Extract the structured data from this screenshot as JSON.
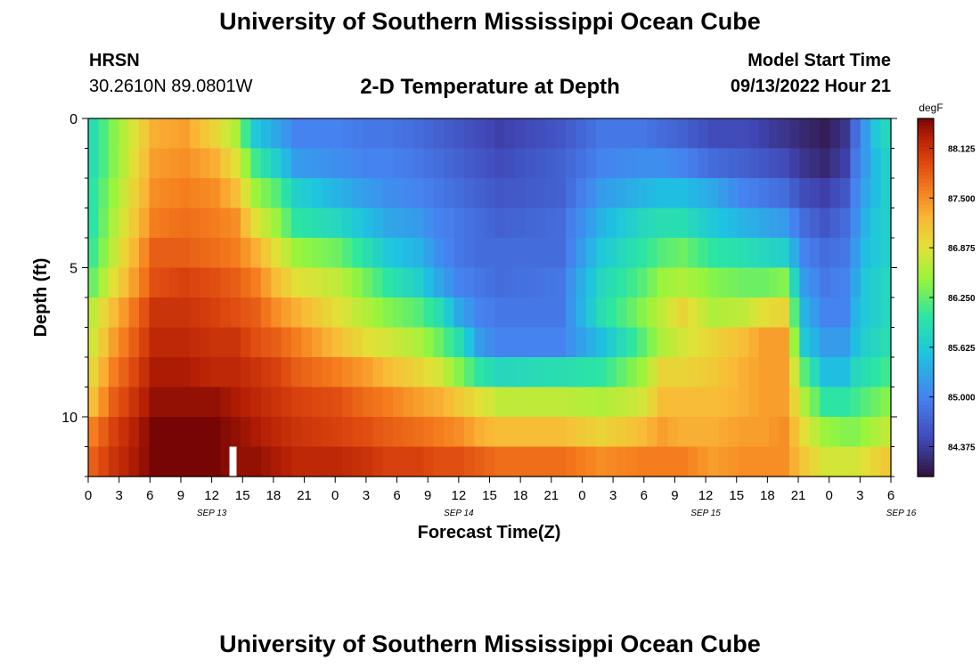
{
  "header": {
    "title": "University of Southern Mississippi Ocean Cube",
    "station": "HRSN",
    "coordinates": "30.2610N  89.0801W",
    "subtitle": "2-D Temperature at Depth",
    "model_start_label": "Model Start Time",
    "model_start_value": "09/13/2022 Hour 21"
  },
  "footer": {
    "title": "University of Southern Mississippi Ocean Cube"
  },
  "chart_data": {
    "type": "heatmap",
    "xlabel": "Forecast Time(Z)",
    "ylabel": "Depth (ft)",
    "colorbar_unit": "degF",
    "colorbar_ticks": [
      84.375,
      85.0,
      85.625,
      86.25,
      86.875,
      87.5,
      88.125
    ],
    "colorbar_tick_labels": [
      "84.375",
      "85.000",
      "85.625",
      "86.250",
      "86.875",
      "87.500",
      "88.125"
    ],
    "value_range": [
      84.0,
      88.5
    ],
    "x_tick_labels": [
      "0",
      "3",
      "6",
      "9",
      "12",
      "15",
      "18",
      "21",
      "0",
      "3",
      "6",
      "9",
      "12",
      "15",
      "18",
      "21",
      "0",
      "3",
      "6",
      "9",
      "12",
      "15",
      "18",
      "21",
      "0",
      "3",
      "6"
    ],
    "x_date_labels": [
      {
        "label": "SEP 13",
        "hour_index": 12
      },
      {
        "label": "SEP 14",
        "hour_index": 36
      },
      {
        "label": "SEP 15",
        "hour_index": 60
      },
      {
        "label": "SEP 16",
        "hour_index": 79
      }
    ],
    "y_ticks": [
      0,
      5,
      10
    ],
    "y_range": [
      0,
      12
    ],
    "hours": 79,
    "depth_layers": 12,
    "key_times": [
      0,
      2,
      6,
      9,
      12,
      14,
      16,
      18,
      20,
      24,
      27,
      29,
      32,
      34,
      36,
      38,
      40,
      46,
      50,
      54,
      56,
      58,
      61,
      64,
      66,
      68,
      70,
      72,
      74,
      75,
      76,
      77,
      78
    ],
    "key_values": [
      [
        85.9,
        85.9,
        86.0,
        86.0,
        86.1,
        86.3,
        86.7,
        86.8,
        87.0,
        87.2,
        87.6,
        87.8
      ],
      [
        86.4,
        86.4,
        86.5,
        86.6,
        86.7,
        86.9,
        87.2,
        87.4,
        87.6,
        87.8,
        88.0,
        88.1
      ],
      [
        87.3,
        87.4,
        87.5,
        87.6,
        87.8,
        87.9,
        88.1,
        88.2,
        88.3,
        88.4,
        88.5,
        88.5
      ],
      [
        87.4,
        87.5,
        87.6,
        87.7,
        87.8,
        88.0,
        88.1,
        88.2,
        88.3,
        88.4,
        88.5,
        88.5
      ],
      [
        87.0,
        87.3,
        87.5,
        87.6,
        87.7,
        87.9,
        88.0,
        88.1,
        88.2,
        88.4,
        88.5,
        88.5
      ],
      [
        86.6,
        86.9,
        87.2,
        87.5,
        87.6,
        87.8,
        87.9,
        88.1,
        88.2,
        88.3,
        88.4,
        88.4
      ],
      [
        85.6,
        86.1,
        86.5,
        86.9,
        87.3,
        87.6,
        87.8,
        87.9,
        88.1,
        88.2,
        88.3,
        88.4
      ],
      [
        85.3,
        85.7,
        86.2,
        86.5,
        86.9,
        87.2,
        87.5,
        87.8,
        88.0,
        88.1,
        88.2,
        88.3
      ],
      [
        85.0,
        85.2,
        85.7,
        86.0,
        86.5,
        86.9,
        87.3,
        87.6,
        87.8,
        88.0,
        88.1,
        88.2
      ],
      [
        85.0,
        85.1,
        85.4,
        85.8,
        86.3,
        86.7,
        86.9,
        87.2,
        87.6,
        87.9,
        88.0,
        88.2
      ],
      [
        84.9,
        85.0,
        85.2,
        85.5,
        85.9,
        86.3,
        86.6,
        86.9,
        87.4,
        87.7,
        87.9,
        88.1
      ],
      [
        84.9,
        85.0,
        85.1,
        85.3,
        85.6,
        86.0,
        86.4,
        86.8,
        87.2,
        87.6,
        87.8,
        88.0
      ],
      [
        84.8,
        84.9,
        85.0,
        85.2,
        85.4,
        85.7,
        86.2,
        86.6,
        87.0,
        87.4,
        87.7,
        88.0
      ],
      [
        84.7,
        84.8,
        84.9,
        85.0,
        85.1,
        85.3,
        85.9,
        86.3,
        86.8,
        87.3,
        87.6,
        87.9
      ],
      [
        84.6,
        84.7,
        84.8,
        84.9,
        84.9,
        85.0,
        85.3,
        85.9,
        86.4,
        87.1,
        87.5,
        87.9
      ],
      [
        84.5,
        84.6,
        84.7,
        84.8,
        84.8,
        84.9,
        85.0,
        85.2,
        86.0,
        86.9,
        87.3,
        87.8
      ],
      [
        84.4,
        84.5,
        84.6,
        84.7,
        84.8,
        84.8,
        84.9,
        85.0,
        85.8,
        86.7,
        87.2,
        87.7
      ],
      [
        84.6,
        84.7,
        84.7,
        84.8,
        84.8,
        84.9,
        84.9,
        85.0,
        85.9,
        86.7,
        87.2,
        87.7
      ],
      [
        84.9,
        85.0,
        85.2,
        85.4,
        85.6,
        85.8,
        85.9,
        85.5,
        86.0,
        86.6,
        87.0,
        87.5
      ],
      [
        84.9,
        85.1,
        85.4,
        85.8,
        86.0,
        86.2,
        86.4,
        86.2,
        86.5,
        86.8,
        87.2,
        87.6
      ],
      [
        84.8,
        85.1,
        85.5,
        85.9,
        86.2,
        86.5,
        86.7,
        86.6,
        87.0,
        87.2,
        87.4,
        87.6
      ],
      [
        84.7,
        85.0,
        85.5,
        85.9,
        86.3,
        86.6,
        87.0,
        86.8,
        87.0,
        87.2,
        87.3,
        87.6
      ],
      [
        84.5,
        84.8,
        85.3,
        85.6,
        86.0,
        86.4,
        86.6,
        87.0,
        87.1,
        87.2,
        87.3,
        87.4
      ],
      [
        84.5,
        84.7,
        85.0,
        85.4,
        85.9,
        86.3,
        86.7,
        87.2,
        87.3,
        87.3,
        87.4,
        87.5
      ],
      [
        84.4,
        84.6,
        84.9,
        85.3,
        85.8,
        86.3,
        86.9,
        87.4,
        87.4,
        87.4,
        87.4,
        87.5
      ],
      [
        84.3,
        84.5,
        84.8,
        85.2,
        85.7,
        86.4,
        87.0,
        87.4,
        87.4,
        87.4,
        87.5,
        87.5
      ],
      [
        84.2,
        84.3,
        84.5,
        84.8,
        85.0,
        85.2,
        85.4,
        85.6,
        86.2,
        86.6,
        86.9,
        87.1
      ],
      [
        84.1,
        84.2,
        84.4,
        84.6,
        84.8,
        84.9,
        85.0,
        85.2,
        85.5,
        86.0,
        86.5,
        86.8
      ],
      [
        84.3,
        84.4,
        84.6,
        84.8,
        84.9,
        85.0,
        85.0,
        85.2,
        85.5,
        86.0,
        86.4,
        86.8
      ],
      [
        84.8,
        84.9,
        85.0,
        85.1,
        85.2,
        85.3,
        85.4,
        85.5,
        85.8,
        86.1,
        86.4,
        86.8
      ],
      [
        85.2,
        85.2,
        85.3,
        85.4,
        85.5,
        85.6,
        85.6,
        85.7,
        85.9,
        86.2,
        86.5,
        86.9
      ],
      [
        85.6,
        85.5,
        85.5,
        85.6,
        85.6,
        85.7,
        85.7,
        85.8,
        86.0,
        86.3,
        86.6,
        87.0
      ],
      [
        85.8,
        85.7,
        85.7,
        85.7,
        85.7,
        85.8,
        85.8,
        85.9,
        86.1,
        86.4,
        86.7,
        87.1
      ]
    ],
    "marker": {
      "hour": 13,
      "depth_layer": 11
    }
  }
}
